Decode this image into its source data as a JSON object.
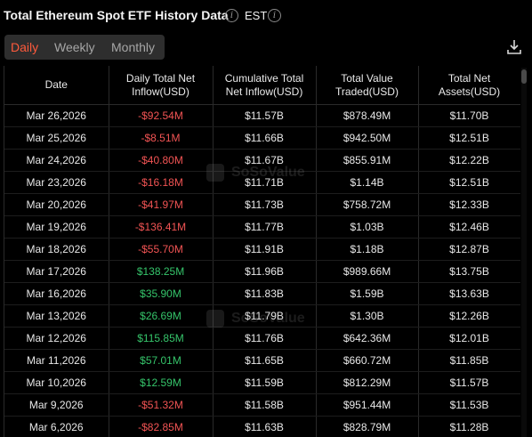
{
  "header": {
    "title": "Total Ethereum Spot ETF History Data",
    "timezone": "EST"
  },
  "tabs": [
    {
      "label": "Daily",
      "active": true
    },
    {
      "label": "Weekly",
      "active": false
    },
    {
      "label": "Monthly",
      "active": false
    }
  ],
  "watermark": "SoSoValue",
  "table": {
    "headers": {
      "date": "Date",
      "net_inflow": "Daily Total Net Inflow(USD)",
      "cum_inflow": "Cumulative Total Net Inflow(USD)",
      "value_traded": "Total Value Traded(USD)",
      "net_assets": "Total Net Assets(USD)"
    },
    "rows": [
      {
        "date": "Mar 26,2026",
        "net_inflow": "-$92.54M",
        "sign": "neg",
        "cum_inflow": "$11.57B",
        "value_traded": "$878.49M",
        "net_assets": "$11.70B"
      },
      {
        "date": "Mar 25,2026",
        "net_inflow": "-$8.51M",
        "sign": "neg",
        "cum_inflow": "$11.66B",
        "value_traded": "$942.50M",
        "net_assets": "$12.51B"
      },
      {
        "date": "Mar 24,2026",
        "net_inflow": "-$40.80M",
        "sign": "neg",
        "cum_inflow": "$11.67B",
        "value_traded": "$855.91M",
        "net_assets": "$12.22B"
      },
      {
        "date": "Mar 23,2026",
        "net_inflow": "-$16.18M",
        "sign": "neg",
        "cum_inflow": "$11.71B",
        "value_traded": "$1.14B",
        "net_assets": "$12.51B"
      },
      {
        "date": "Mar 20,2026",
        "net_inflow": "-$41.97M",
        "sign": "neg",
        "cum_inflow": "$11.73B",
        "value_traded": "$758.72M",
        "net_assets": "$12.33B"
      },
      {
        "date": "Mar 19,2026",
        "net_inflow": "-$136.41M",
        "sign": "neg",
        "cum_inflow": "$11.77B",
        "value_traded": "$1.03B",
        "net_assets": "$12.46B"
      },
      {
        "date": "Mar 18,2026",
        "net_inflow": "-$55.70M",
        "sign": "neg",
        "cum_inflow": "$11.91B",
        "value_traded": "$1.18B",
        "net_assets": "$12.87B"
      },
      {
        "date": "Mar 17,2026",
        "net_inflow": "$138.25M",
        "sign": "pos",
        "cum_inflow": "$11.96B",
        "value_traded": "$989.66M",
        "net_assets": "$13.75B"
      },
      {
        "date": "Mar 16,2026",
        "net_inflow": "$35.90M",
        "sign": "pos",
        "cum_inflow": "$11.83B",
        "value_traded": "$1.59B",
        "net_assets": "$13.63B"
      },
      {
        "date": "Mar 13,2026",
        "net_inflow": "$26.69M",
        "sign": "pos",
        "cum_inflow": "$11.79B",
        "value_traded": "$1.30B",
        "net_assets": "$12.26B"
      },
      {
        "date": "Mar 12,2026",
        "net_inflow": "$115.85M",
        "sign": "pos",
        "cum_inflow": "$11.76B",
        "value_traded": "$642.36M",
        "net_assets": "$12.01B"
      },
      {
        "date": "Mar 11,2026",
        "net_inflow": "$57.01M",
        "sign": "pos",
        "cum_inflow": "$11.65B",
        "value_traded": "$660.72M",
        "net_assets": "$11.85B"
      },
      {
        "date": "Mar 10,2026",
        "net_inflow": "$12.59M",
        "sign": "pos",
        "cum_inflow": "$11.59B",
        "value_traded": "$812.29M",
        "net_assets": "$11.57B"
      },
      {
        "date": "Mar 9,2026",
        "net_inflow": "-$51.32M",
        "sign": "neg",
        "cum_inflow": "$11.58B",
        "value_traded": "$951.44M",
        "net_assets": "$11.53B"
      },
      {
        "date": "Mar 6,2026",
        "net_inflow": "-$82.85M",
        "sign": "neg",
        "cum_inflow": "$11.63B",
        "value_traded": "$828.79M",
        "net_assets": "$11.28B"
      }
    ]
  },
  "colors": {
    "negative": "#f25454",
    "positive": "#35c46a",
    "active_tab": "#ff5a3c"
  },
  "icons": {
    "info": "info-circle-icon",
    "download": "download-icon"
  }
}
